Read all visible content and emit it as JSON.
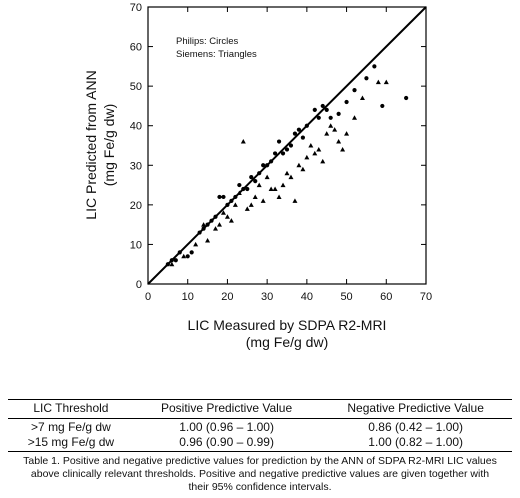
{
  "chart_data": {
    "type": "scatter",
    "xlabel_lines": [
      "LIC Measured by SDPA R2-MRI",
      "(mg Fe/g dw)"
    ],
    "ylabel_lines": [
      "LIC Predicted from ANN",
      "(mg Fe/g dw)"
    ],
    "xlim": [
      0,
      70
    ],
    "ylim": [
      0,
      70
    ],
    "xticks": [
      0,
      10,
      20,
      30,
      40,
      50,
      60,
      70
    ],
    "yticks": [
      0,
      10,
      20,
      30,
      40,
      50,
      60,
      70
    ],
    "annotations": [
      "Philips: Circles",
      "Siemens: Triangles"
    ],
    "identity_line": [
      [
        0,
        0
      ],
      [
        70,
        70
      ]
    ],
    "series": [
      {
        "marker": "circle",
        "points": [
          [
            5,
            5
          ],
          [
            6,
            6
          ],
          [
            7,
            6
          ],
          [
            8,
            8
          ],
          [
            10,
            7
          ],
          [
            11,
            8
          ],
          [
            13,
            13
          ],
          [
            14,
            14
          ],
          [
            15,
            15
          ],
          [
            16,
            16
          ],
          [
            17,
            17
          ],
          [
            18,
            22
          ],
          [
            19,
            22
          ],
          [
            20,
            20
          ],
          [
            21,
            21
          ],
          [
            22,
            22
          ],
          [
            23,
            25
          ],
          [
            24,
            24
          ],
          [
            25,
            24
          ],
          [
            26,
            27
          ],
          [
            27,
            26
          ],
          [
            28,
            28
          ],
          [
            29,
            30
          ],
          [
            30,
            30
          ],
          [
            31,
            31
          ],
          [
            32,
            33
          ],
          [
            33,
            36
          ],
          [
            34,
            33
          ],
          [
            35,
            34
          ],
          [
            36,
            35
          ],
          [
            37,
            38
          ],
          [
            38,
            39
          ],
          [
            39,
            37
          ],
          [
            40,
            40
          ],
          [
            42,
            44
          ],
          [
            43,
            42
          ],
          [
            44,
            45
          ],
          [
            45,
            44
          ],
          [
            46,
            42
          ],
          [
            48,
            43
          ],
          [
            50,
            46
          ],
          [
            52,
            49
          ],
          [
            55,
            52
          ],
          [
            57,
            55
          ],
          [
            59,
            45
          ],
          [
            65,
            47
          ]
        ]
      },
      {
        "marker": "triangle",
        "points": [
          [
            6,
            5
          ],
          [
            9,
            7
          ],
          [
            12,
            10
          ],
          [
            14,
            15
          ],
          [
            15,
            11
          ],
          [
            17,
            14
          ],
          [
            18,
            15
          ],
          [
            19,
            18
          ],
          [
            20,
            17
          ],
          [
            21,
            16
          ],
          [
            22,
            20
          ],
          [
            23,
            23
          ],
          [
            24,
            36
          ],
          [
            25,
            19
          ],
          [
            26,
            20
          ],
          [
            27,
            22
          ],
          [
            28,
            25
          ],
          [
            29,
            21
          ],
          [
            30,
            27
          ],
          [
            31,
            24
          ],
          [
            32,
            24
          ],
          [
            33,
            22
          ],
          [
            34,
            25
          ],
          [
            35,
            28
          ],
          [
            36,
            27
          ],
          [
            37,
            21
          ],
          [
            38,
            30
          ],
          [
            39,
            29
          ],
          [
            40,
            32
          ],
          [
            41,
            35
          ],
          [
            42,
            33
          ],
          [
            43,
            34
          ],
          [
            44,
            31
          ],
          [
            45,
            38
          ],
          [
            46,
            40
          ],
          [
            47,
            39
          ],
          [
            48,
            36
          ],
          [
            49,
            34
          ],
          [
            50,
            38
          ],
          [
            52,
            42
          ],
          [
            54,
            47
          ],
          [
            58,
            51
          ],
          [
            60,
            51
          ]
        ]
      }
    ]
  },
  "table": {
    "headers": [
      "LIC Threshold",
      "Positive Predictive Value",
      "Negative Predictive Value"
    ],
    "rows": [
      [
        ">7 mg Fe/g dw",
        "1.00 (0.96 – 1.00)",
        "0.86 (0.42 – 1.00)"
      ],
      [
        ">15 mg Fe/g dw",
        "0.96 (0.90 – 0.99)",
        "1.00 (0.82 – 1.00)"
      ]
    ],
    "caption_lines": [
      "Table 1. Positive and negative predictive values for prediction by the ANN of SDPA R2-MRI LIC values",
      "above clinically relevant thresholds.  Positive and negative predictive values are given together with",
      "their 95% confidence intervals."
    ]
  }
}
